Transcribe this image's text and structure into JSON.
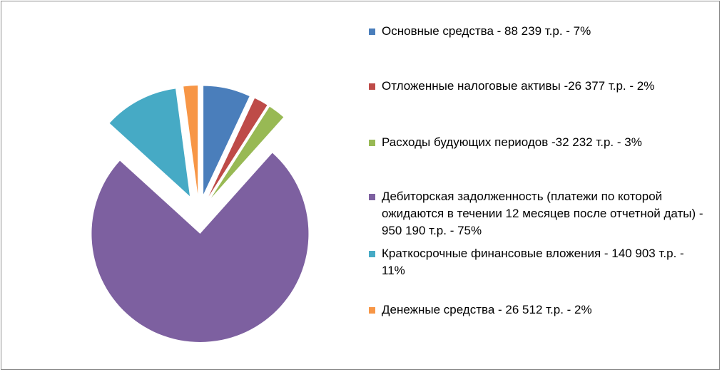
{
  "chart_data": {
    "type": "pie",
    "exploded": true,
    "legend_position": "right",
    "slices": [
      {
        "label": "Основные средства - 88 239 т.р. - 7%",
        "value": 88239,
        "percent": 7,
        "color": "#4a7ebb"
      },
      {
        "label": "Отложенные налоговые активы -26 377 т.р. - 2%",
        "value": 26377,
        "percent": 2,
        "color": "#be4b48"
      },
      {
        "label": "Расходы будующих периодов -32 232 т.р. - 3%",
        "value": 32232,
        "percent": 3,
        "color": "#98b954"
      },
      {
        "label": "Дебиторская задолженность (платежи по которой ожидаются в течении 12 месяцев после отчетной даты) - 950 190 т.р. - 75%",
        "value": 950190,
        "percent": 75,
        "color": "#7d60a0"
      },
      {
        "label": "Краткосрочные финансовые вложения - 140 903 т.р. - 11%",
        "value": 140903,
        "percent": 11,
        "color": "#46aac5"
      },
      {
        "label": "Денежные средства - 26 512 т.р. - 2%",
        "value": 26512,
        "percent": 2,
        "color": "#f79646"
      }
    ]
  }
}
